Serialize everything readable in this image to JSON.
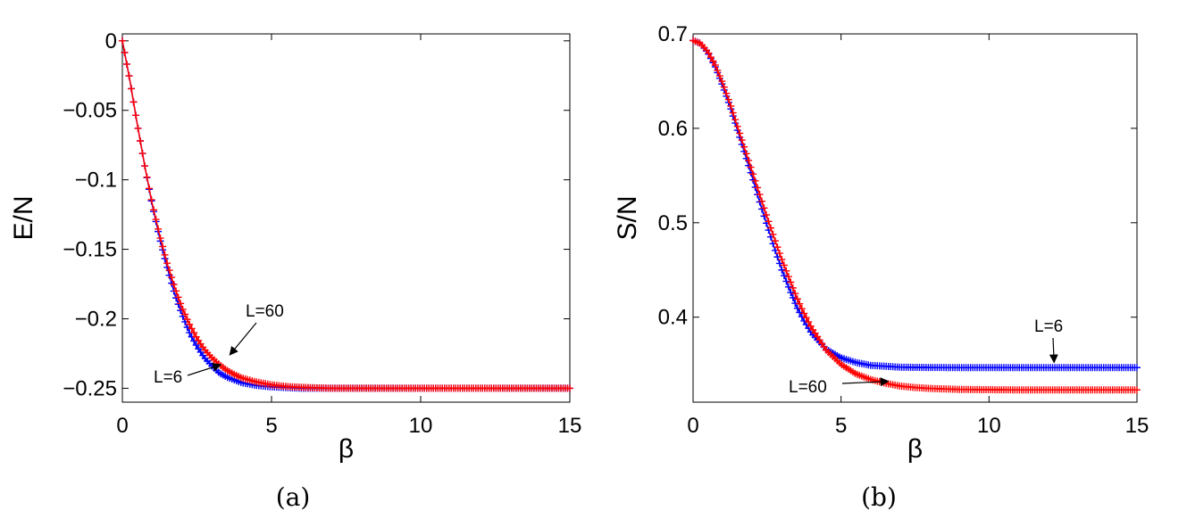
{
  "chart_data": [
    {
      "type": "scatter",
      "panel": "a",
      "caption": "(a)",
      "xlabel": "β",
      "ylabel": "E/N",
      "xlim": [
        0,
        15
      ],
      "ylim": [
        -0.26,
        0.005
      ],
      "xticks": [
        0,
        5,
        10,
        15
      ],
      "xtick_labels": [
        "0",
        "5",
        "10",
        "15"
      ],
      "yticks": [
        0,
        -0.05,
        -0.1,
        -0.15,
        -0.2,
        -0.25
      ],
      "ytick_labels": [
        "0",
        "−0.05",
        "−0.1",
        "−0.15",
        "−0.2",
        "−0.25"
      ],
      "grid": false,
      "series": [
        {
          "name": "L=6",
          "color": "#0000ff",
          "marker": "plus",
          "x": [
            0,
            0.25,
            0.5,
            0.75,
            1,
            1.25,
            1.5,
            1.75,
            2,
            2.25,
            2.5,
            2.75,
            3,
            3.25,
            3.5,
            3.75,
            4,
            4.5,
            5,
            5.5,
            6,
            7,
            8,
            9,
            10,
            11,
            12,
            13,
            14,
            15
          ],
          "values": [
            0,
            -0.028,
            -0.06,
            -0.09,
            -0.118,
            -0.142,
            -0.163,
            -0.182,
            -0.197,
            -0.21,
            -0.22,
            -0.228,
            -0.234,
            -0.239,
            -0.242,
            -0.244,
            -0.246,
            -0.248,
            -0.249,
            -0.2495,
            -0.25,
            -0.25,
            -0.25,
            -0.25,
            -0.25,
            -0.25,
            -0.25,
            -0.25,
            -0.25,
            -0.25
          ]
        },
        {
          "name": "L=60",
          "color": "#ff0000",
          "marker": "plus",
          "x": [
            0,
            0.25,
            0.5,
            0.75,
            1,
            1.25,
            1.5,
            1.75,
            2,
            2.25,
            2.5,
            2.75,
            3,
            3.25,
            3.5,
            3.75,
            4,
            4.5,
            5,
            5.5,
            6,
            6.5,
            7,
            8,
            9,
            10,
            11,
            12,
            13,
            14,
            15
          ],
          "values": [
            0,
            -0.028,
            -0.06,
            -0.09,
            -0.117,
            -0.14,
            -0.16,
            -0.177,
            -0.192,
            -0.204,
            -0.214,
            -0.222,
            -0.228,
            -0.233,
            -0.237,
            -0.24,
            -0.2425,
            -0.2455,
            -0.2475,
            -0.2487,
            -0.2493,
            -0.2497,
            -0.25,
            -0.25,
            -0.25,
            -0.25,
            -0.25,
            -0.25,
            -0.25,
            -0.25,
            -0.25
          ]
        }
      ],
      "annotations": [
        {
          "text": "L=60",
          "arrow_to": [
            3.6,
            -0.226
          ]
        },
        {
          "text": "L=6",
          "arrow_to": [
            3.3,
            -0.233
          ]
        }
      ]
    },
    {
      "type": "scatter",
      "panel": "b",
      "caption": "(b)",
      "xlabel": "β",
      "ylabel": "S/N",
      "xlim": [
        0,
        15
      ],
      "ylim": [
        0.31,
        0.7
      ],
      "xticks": [
        0,
        5,
        10,
        15
      ],
      "xtick_labels": [
        "0",
        "5",
        "10",
        "15"
      ],
      "yticks": [
        0.4,
        0.5,
        0.6,
        0.7
      ],
      "ytick_labels": [
        "0.4",
        "0.5",
        "0.6",
        "0.7"
      ],
      "grid": false,
      "series": [
        {
          "name": "L=6",
          "color": "#0000ff",
          "marker": "plus",
          "x": [
            0,
            0.25,
            0.5,
            0.75,
            1,
            1.25,
            1.5,
            1.75,
            2,
            2.25,
            2.5,
            2.75,
            3,
            3.25,
            3.5,
            3.75,
            4,
            4.5,
            5,
            5.5,
            6,
            6.5,
            7,
            8,
            9,
            10,
            11,
            12,
            13,
            14,
            15
          ],
          "values": [
            0.693,
            0.69,
            0.68,
            0.665,
            0.645,
            0.623,
            0.598,
            0.573,
            0.548,
            0.522,
            0.497,
            0.473,
            0.45,
            0.43,
            0.411,
            0.396,
            0.383,
            0.366,
            0.357,
            0.352,
            0.349,
            0.348,
            0.347,
            0.3467,
            0.3466,
            0.3466,
            0.3466,
            0.3466,
            0.3466,
            0.3466,
            0.3466
          ]
        },
        {
          "name": "L=60",
          "color": "#ff0000",
          "marker": "plus",
          "x": [
            0,
            0.25,
            0.5,
            0.75,
            1,
            1.25,
            1.5,
            1.75,
            2,
            2.25,
            2.5,
            2.75,
            3,
            3.25,
            3.5,
            3.75,
            4,
            4.5,
            5,
            5.5,
            6,
            6.5,
            7,
            7.5,
            8,
            9,
            10,
            11,
            12,
            13,
            14,
            15
          ],
          "values": [
            0.693,
            0.69,
            0.681,
            0.667,
            0.648,
            0.626,
            0.602,
            0.578,
            0.554,
            0.53,
            0.506,
            0.483,
            0.461,
            0.441,
            0.421,
            0.404,
            0.389,
            0.365,
            0.35,
            0.34,
            0.334,
            0.33,
            0.327,
            0.3255,
            0.3245,
            0.3235,
            0.3232,
            0.323,
            0.323,
            0.323,
            0.323,
            0.323
          ]
        }
      ],
      "annotations": [
        {
          "text": "L=6",
          "arrow_to": [
            12.2,
            0.352
          ]
        },
        {
          "text": "L=60",
          "arrow_to": [
            6.6,
            0.332
          ]
        }
      ]
    }
  ]
}
